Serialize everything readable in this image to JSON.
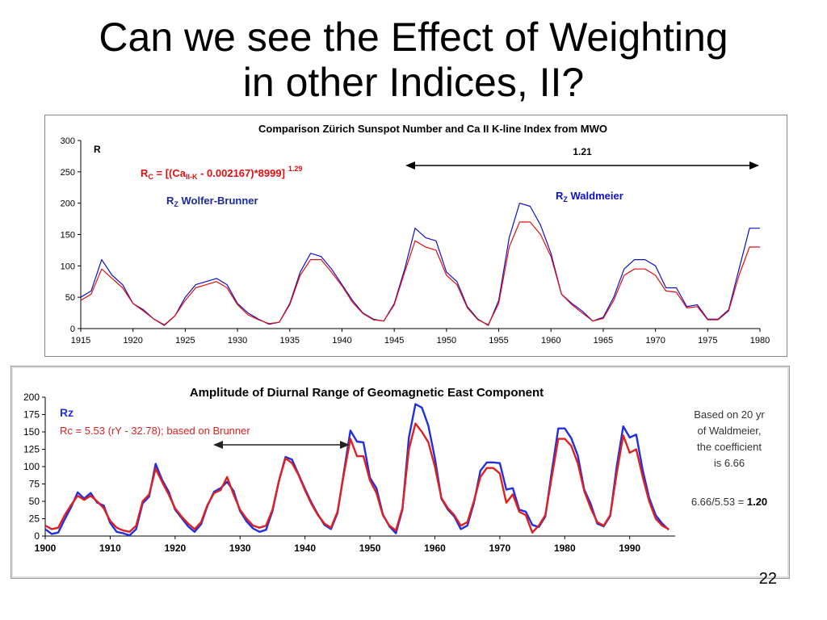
{
  "slide": {
    "title_line1": "Can we see the Effect of Weighting",
    "title_line2": "in other Indices, II?",
    "page_number": "22"
  },
  "chart_data": [
    {
      "type": "line",
      "title": "Comparison Zürich Sunspot Number and Ca II K-line Index from MWO",
      "ylabel": "R",
      "xlim": [
        1915,
        1980
      ],
      "ylim": [
        0,
        300
      ],
      "xticks": [
        1915,
        1920,
        1925,
        1930,
        1935,
        1940,
        1945,
        1950,
        1955,
        1960,
        1965,
        1970,
        1975,
        1980
      ],
      "yticks": [
        0,
        50,
        100,
        150,
        200,
        250,
        300
      ],
      "annotations": {
        "formula_prefix": "R",
        "formula_prefix_sub": "C",
        "formula_mid": " = [(Ca",
        "formula_mid_sub": "II-K",
        "formula_end": " - 0.002167)*8999]",
        "formula_exp": "1.29",
        "label_wolfer": "R",
        "label_wolfer_sub": "Z",
        "label_wolfer_name": " Wolfer-Brunner",
        "label_wald": "R",
        "label_wald_sub": "Z",
        "label_wald_name": " Waldmeier",
        "ratio": "1.21"
      },
      "series": [
        {
          "name": "Rz",
          "color": "#1010c8",
          "x": [
            1915,
            1916,
            1917,
            1918,
            1919,
            1920,
            1921,
            1922,
            1923,
            1924,
            1925,
            1926,
            1927,
            1928,
            1929,
            1930,
            1931,
            1932,
            1933,
            1934,
            1935,
            1936,
            1937,
            1938,
            1939,
            1940,
            1941,
            1942,
            1943,
            1944,
            1945,
            1946,
            1947,
            1948,
            1949,
            1950,
            1951,
            1952,
            1953,
            1954,
            1955,
            1956,
            1957,
            1958,
            1959,
            1960,
            1961,
            1962,
            1963,
            1964,
            1965,
            1966,
            1967,
            1968,
            1969,
            1970,
            1971,
            1972,
            1973,
            1974,
            1975,
            1976,
            1977,
            1978,
            1979,
            1980
          ],
          "y": [
            50,
            60,
            110,
            85,
            70,
            40,
            30,
            15,
            5,
            20,
            50,
            70,
            75,
            80,
            70,
            40,
            25,
            15,
            7,
            10,
            40,
            90,
            120,
            115,
            95,
            70,
            45,
            25,
            15,
            12,
            40,
            95,
            160,
            145,
            140,
            90,
            75,
            35,
            15,
            5,
            45,
            145,
            200,
            195,
            165,
            120,
            55,
            40,
            28,
            12,
            18,
            50,
            95,
            110,
            110,
            100,
            65,
            65,
            35,
            38,
            15,
            15,
            30,
            95,
            160,
            160
          ]
        },
        {
          "name": "Rc",
          "color": "#e01010",
          "x": [
            1915,
            1916,
            1917,
            1918,
            1919,
            1920,
            1921,
            1922,
            1923,
            1924,
            1925,
            1926,
            1927,
            1928,
            1929,
            1930,
            1931,
            1932,
            1933,
            1934,
            1935,
            1936,
            1937,
            1938,
            1939,
            1940,
            1941,
            1942,
            1943,
            1944,
            1945,
            1946,
            1947,
            1948,
            1949,
            1950,
            1951,
            1952,
            1953,
            1954,
            1955,
            1956,
            1957,
            1958,
            1959,
            1960,
            1961,
            1962,
            1963,
            1964,
            1965,
            1966,
            1967,
            1968,
            1969,
            1970,
            1971,
            1972,
            1973,
            1974,
            1975,
            1976,
            1977,
            1978,
            1979,
            1980
          ],
          "y": [
            45,
            55,
            95,
            80,
            65,
            40,
            28,
            15,
            6,
            20,
            45,
            65,
            70,
            75,
            65,
            38,
            22,
            14,
            8,
            10,
            38,
            85,
            110,
            110,
            90,
            68,
            42,
            24,
            14,
            12,
            38,
            90,
            140,
            130,
            125,
            85,
            70,
            33,
            14,
            6,
            40,
            130,
            170,
            170,
            150,
            115,
            55,
            38,
            25,
            12,
            16,
            45,
            85,
            95,
            95,
            85,
            60,
            58,
            33,
            35,
            14,
            14,
            28,
            85,
            130,
            130
          ]
        }
      ]
    },
    {
      "type": "line",
      "title": "Amplitude of Diurnal Range of Geomagnetic East Component",
      "xlim": [
        1900,
        1997
      ],
      "ylim": [
        0,
        200
      ],
      "xticks": [
        1900,
        1910,
        1920,
        1930,
        1940,
        1950,
        1960,
        1970,
        1980,
        1990
      ],
      "yticks": [
        0,
        25,
        50,
        75,
        100,
        125,
        150,
        175,
        200
      ],
      "annotations": {
        "legend_rz": "Rz",
        "legend_rc": "Rc = 5.53 (rY - 32.78);  based on Brunner",
        "note_line1": "Based on 20 yr",
        "note_line2": "of Waldmeier,",
        "note_line3": "the coefficient",
        "note_line4": "is 6.66",
        "ratio_text": "6.66/5.53 = ",
        "ratio_value": "1.20"
      },
      "series": [
        {
          "name": "Rz",
          "color": "#2030e0",
          "x": [
            1900,
            1901,
            1902,
            1903,
            1904,
            1905,
            1906,
            1907,
            1908,
            1909,
            1910,
            1911,
            1912,
            1913,
            1914,
            1915,
            1916,
            1917,
            1918,
            1919,
            1920,
            1921,
            1922,
            1923,
            1924,
            1925,
            1926,
            1927,
            1928,
            1929,
            1930,
            1931,
            1932,
            1933,
            1934,
            1935,
            1936,
            1937,
            1938,
            1939,
            1940,
            1941,
            1942,
            1943,
            1944,
            1945,
            1946,
            1947,
            1948,
            1949,
            1950,
            1951,
            1952,
            1953,
            1954,
            1955,
            1956,
            1957,
            1958,
            1959,
            1960,
            1961,
            1962,
            1963,
            1964,
            1965,
            1966,
            1967,
            1968,
            1969,
            1970,
            1971,
            1972,
            1973,
            1974,
            1975,
            1976,
            1977,
            1978,
            1979,
            1980,
            1981,
            1982,
            1983,
            1984,
            1985,
            1986,
            1987,
            1988,
            1989,
            1990,
            1991,
            1992,
            1993,
            1994,
            1995,
            1996
          ],
          "y": [
            10,
            3,
            5,
            24,
            42,
            63,
            54,
            62,
            48,
            44,
            19,
            6,
            4,
            1,
            10,
            47,
            57,
            104,
            81,
            64,
            38,
            26,
            14,
            6,
            17,
            44,
            64,
            69,
            78,
            65,
            36,
            21,
            11,
            6,
            9,
            36,
            80,
            114,
            110,
            89,
            68,
            48,
            31,
            16,
            10,
            33,
            93,
            152,
            136,
            135,
            84,
            69,
            31,
            14,
            4,
            38,
            142,
            190,
            185,
            159,
            112,
            54,
            38,
            28,
            10,
            15,
            47,
            94,
            106,
            106,
            105,
            67,
            69,
            38,
            35,
            16,
            13,
            28,
            93,
            155,
            155,
            141,
            116,
            67,
            46,
            18,
            14,
            29,
            100,
            158,
            142,
            146,
            95,
            55,
            30,
            18,
            9
          ]
        },
        {
          "name": "Rc",
          "color": "#e02020",
          "x": [
            1900,
            1901,
            1902,
            1903,
            1904,
            1905,
            1906,
            1907,
            1908,
            1909,
            1910,
            1911,
            1912,
            1913,
            1914,
            1915,
            1916,
            1917,
            1918,
            1919,
            1920,
            1921,
            1922,
            1923,
            1924,
            1925,
            1926,
            1927,
            1928,
            1929,
            1930,
            1931,
            1932,
            1933,
            1934,
            1935,
            1936,
            1937,
            1938,
            1939,
            1940,
            1941,
            1942,
            1943,
            1944,
            1945,
            1946,
            1947,
            1948,
            1949,
            1950,
            1951,
            1952,
            1953,
            1954,
            1955,
            1956,
            1957,
            1958,
            1959,
            1960,
            1961,
            1962,
            1963,
            1964,
            1965,
            1966,
            1967,
            1968,
            1969,
            1970,
            1971,
            1972,
            1973,
            1974,
            1975,
            1976,
            1977,
            1978,
            1979,
            1980,
            1981,
            1982,
            1983,
            1984,
            1985,
            1986,
            1987,
            1988,
            1989,
            1990,
            1991,
            1992,
            1993,
            1994,
            1995,
            1996
          ],
          "y": [
            15,
            10,
            12,
            30,
            45,
            58,
            52,
            58,
            50,
            40,
            22,
            12,
            8,
            6,
            15,
            50,
            60,
            97,
            78,
            60,
            40,
            28,
            18,
            10,
            20,
            45,
            62,
            66,
            85,
            60,
            38,
            25,
            15,
            12,
            15,
            38,
            80,
            112,
            105,
            88,
            66,
            46,
            30,
            18,
            12,
            35,
            90,
            140,
            115,
            115,
            80,
            62,
            30,
            15,
            8,
            40,
            125,
            162,
            150,
            135,
            100,
            55,
            40,
            30,
            15,
            20,
            50,
            85,
            98,
            98,
            90,
            48,
            60,
            35,
            30,
            5,
            15,
            30,
            85,
            140,
            140,
            130,
            105,
            65,
            40,
            20,
            15,
            30,
            90,
            145,
            120,
            125,
            85,
            50,
            25,
            15,
            10
          ]
        }
      ]
    }
  ]
}
